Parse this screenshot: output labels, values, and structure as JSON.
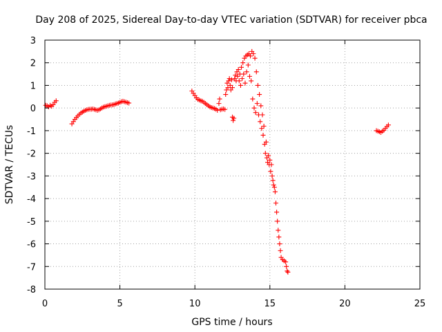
{
  "chart_data": {
    "type": "scatter",
    "title": "Day 208 of 2025, Sidereal Day-to-day VTEC variation (SDTVAR) for receiver pbca",
    "xlabel": "GPS time / hours",
    "ylabel": "SDTVAR / TECUs",
    "xlim": [
      0,
      25
    ],
    "ylim": [
      -8,
      3
    ],
    "xticks": [
      0,
      5,
      10,
      15,
      20,
      25
    ],
    "yticks": [
      -8,
      -7,
      -6,
      -5,
      -4,
      -3,
      -2,
      -1,
      0,
      1,
      2,
      3
    ],
    "grid": true,
    "marker": "plus",
    "color": "#ff0000",
    "series": [
      {
        "name": "pbca",
        "points": [
          [
            0.05,
            0.12
          ],
          [
            0.15,
            0.1
          ],
          [
            0.25,
            0.05
          ],
          [
            0.35,
            0.12
          ],
          [
            0.45,
            0.08
          ],
          [
            0.55,
            0.15
          ],
          [
            0.65,
            0.25
          ],
          [
            0.75,
            0.32
          ],
          [
            1.8,
            -0.7
          ],
          [
            1.9,
            -0.6
          ],
          [
            2.0,
            -0.5
          ],
          [
            2.1,
            -0.42
          ],
          [
            2.2,
            -0.35
          ],
          [
            2.3,
            -0.28
          ],
          [
            2.4,
            -0.22
          ],
          [
            2.5,
            -0.18
          ],
          [
            2.6,
            -0.14
          ],
          [
            2.7,
            -0.1
          ],
          [
            2.8,
            -0.08
          ],
          [
            2.9,
            -0.06
          ],
          [
            3.0,
            -0.05
          ],
          [
            3.1,
            -0.05
          ],
          [
            3.2,
            -0.04
          ],
          [
            3.3,
            -0.06
          ],
          [
            3.4,
            -0.08
          ],
          [
            3.5,
            -0.1
          ],
          [
            3.6,
            -0.08
          ],
          [
            3.7,
            -0.04
          ],
          [
            3.8,
            0.0
          ],
          [
            3.9,
            0.04
          ],
          [
            4.0,
            0.06
          ],
          [
            4.1,
            0.08
          ],
          [
            4.2,
            0.1
          ],
          [
            4.3,
            0.12
          ],
          [
            4.4,
            0.13
          ],
          [
            4.5,
            0.14
          ],
          [
            4.6,
            0.15
          ],
          [
            4.7,
            0.18
          ],
          [
            4.8,
            0.2
          ],
          [
            4.9,
            0.22
          ],
          [
            5.0,
            0.25
          ],
          [
            5.1,
            0.28
          ],
          [
            5.2,
            0.3
          ],
          [
            5.3,
            0.28
          ],
          [
            5.4,
            0.26
          ],
          [
            5.5,
            0.24
          ],
          [
            5.6,
            0.22
          ],
          [
            9.8,
            0.75
          ],
          [
            9.9,
            0.65
          ],
          [
            10.0,
            0.55
          ],
          [
            10.1,
            0.45
          ],
          [
            10.2,
            0.38
          ],
          [
            10.3,
            0.35
          ],
          [
            10.4,
            0.32
          ],
          [
            10.5,
            0.3
          ],
          [
            10.6,
            0.25
          ],
          [
            10.7,
            0.2
          ],
          [
            10.8,
            0.15
          ],
          [
            10.9,
            0.1
          ],
          [
            11.0,
            0.05
          ],
          [
            11.1,
            0.02
          ],
          [
            11.2,
            0.0
          ],
          [
            11.3,
            -0.02
          ],
          [
            11.4,
            -0.05
          ],
          [
            11.5,
            -0.1
          ],
          [
            11.6,
            0.2
          ],
          [
            11.65,
            0.4
          ],
          [
            11.7,
            -0.08
          ],
          [
            11.8,
            -0.05
          ],
          [
            11.9,
            -0.04
          ],
          [
            12.0,
            -0.06
          ],
          [
            12.05,
            0.6
          ],
          [
            12.1,
            0.8
          ],
          [
            12.15,
            1.1
          ],
          [
            12.2,
            0.9
          ],
          [
            12.25,
            1.2
          ],
          [
            12.3,
            1.3
          ],
          [
            12.35,
            1.0
          ],
          [
            12.4,
            0.8
          ],
          [
            12.45,
            1.25
          ],
          [
            12.5,
            0.9
          ],
          [
            12.5,
            -0.4
          ],
          [
            12.55,
            -0.55
          ],
          [
            12.6,
            -0.45
          ],
          [
            12.65,
            1.3
          ],
          [
            12.7,
            1.45
          ],
          [
            12.75,
            1.2
          ],
          [
            12.8,
            1.6
          ],
          [
            12.85,
            1.4
          ],
          [
            12.9,
            1.7
          ],
          [
            12.95,
            1.2
          ],
          [
            13.0,
            1.5
          ],
          [
            13.05,
            1.0
          ],
          [
            13.1,
            1.8
          ],
          [
            13.15,
            1.3
          ],
          [
            13.2,
            2.0
          ],
          [
            13.25,
            1.5
          ],
          [
            13.3,
            2.2
          ],
          [
            13.35,
            1.1
          ],
          [
            13.4,
            2.3
          ],
          [
            13.45,
            1.6
          ],
          [
            13.5,
            2.35
          ],
          [
            13.55,
            1.9
          ],
          [
            13.6,
            2.4
          ],
          [
            13.65,
            1.4
          ],
          [
            13.7,
            2.3
          ],
          [
            13.75,
            1.2
          ],
          [
            13.8,
            2.5
          ],
          [
            13.85,
            0.4
          ],
          [
            13.9,
            2.4
          ],
          [
            13.95,
            0.0
          ],
          [
            14.0,
            2.2
          ],
          [
            14.05,
            -0.2
          ],
          [
            14.1,
            1.6
          ],
          [
            14.15,
            0.2
          ],
          [
            14.2,
            1.0
          ],
          [
            14.25,
            -0.3
          ],
          [
            14.3,
            0.6
          ],
          [
            14.35,
            -0.6
          ],
          [
            14.4,
            0.1
          ],
          [
            14.45,
            -0.9
          ],
          [
            14.5,
            -0.3
          ],
          [
            14.55,
            -1.2
          ],
          [
            14.6,
            -0.8
          ],
          [
            14.65,
            -1.6
          ],
          [
            14.7,
            -2.0
          ],
          [
            14.75,
            -1.5
          ],
          [
            14.8,
            -2.2
          ],
          [
            14.85,
            -2.4
          ],
          [
            14.9,
            -2.1
          ],
          [
            14.95,
            -2.5
          ],
          [
            15.0,
            -2.3
          ],
          [
            15.05,
            -2.8
          ],
          [
            15.1,
            -2.5
          ],
          [
            15.15,
            -3.0
          ],
          [
            15.2,
            -3.2
          ],
          [
            15.25,
            -3.4
          ],
          [
            15.3,
            -3.5
          ],
          [
            15.35,
            -3.7
          ],
          [
            15.4,
            -4.2
          ],
          [
            15.45,
            -4.6
          ],
          [
            15.5,
            -5.0
          ],
          [
            15.55,
            -5.4
          ],
          [
            15.6,
            -5.7
          ],
          [
            15.65,
            -6.0
          ],
          [
            15.7,
            -6.3
          ],
          [
            15.75,
            -6.6
          ],
          [
            15.85,
            -6.7
          ],
          [
            15.95,
            -6.75
          ],
          [
            16.05,
            -6.8
          ],
          [
            16.1,
            -7.0
          ],
          [
            16.15,
            -7.2
          ],
          [
            16.2,
            -7.25
          ],
          [
            22.1,
            -1.0
          ],
          [
            22.2,
            -1.02
          ],
          [
            22.3,
            -1.05
          ],
          [
            22.4,
            -1.08
          ],
          [
            22.5,
            -1.02
          ],
          [
            22.6,
            -0.98
          ],
          [
            22.7,
            -0.9
          ],
          [
            22.8,
            -0.82
          ],
          [
            22.9,
            -0.75
          ]
        ]
      }
    ]
  }
}
